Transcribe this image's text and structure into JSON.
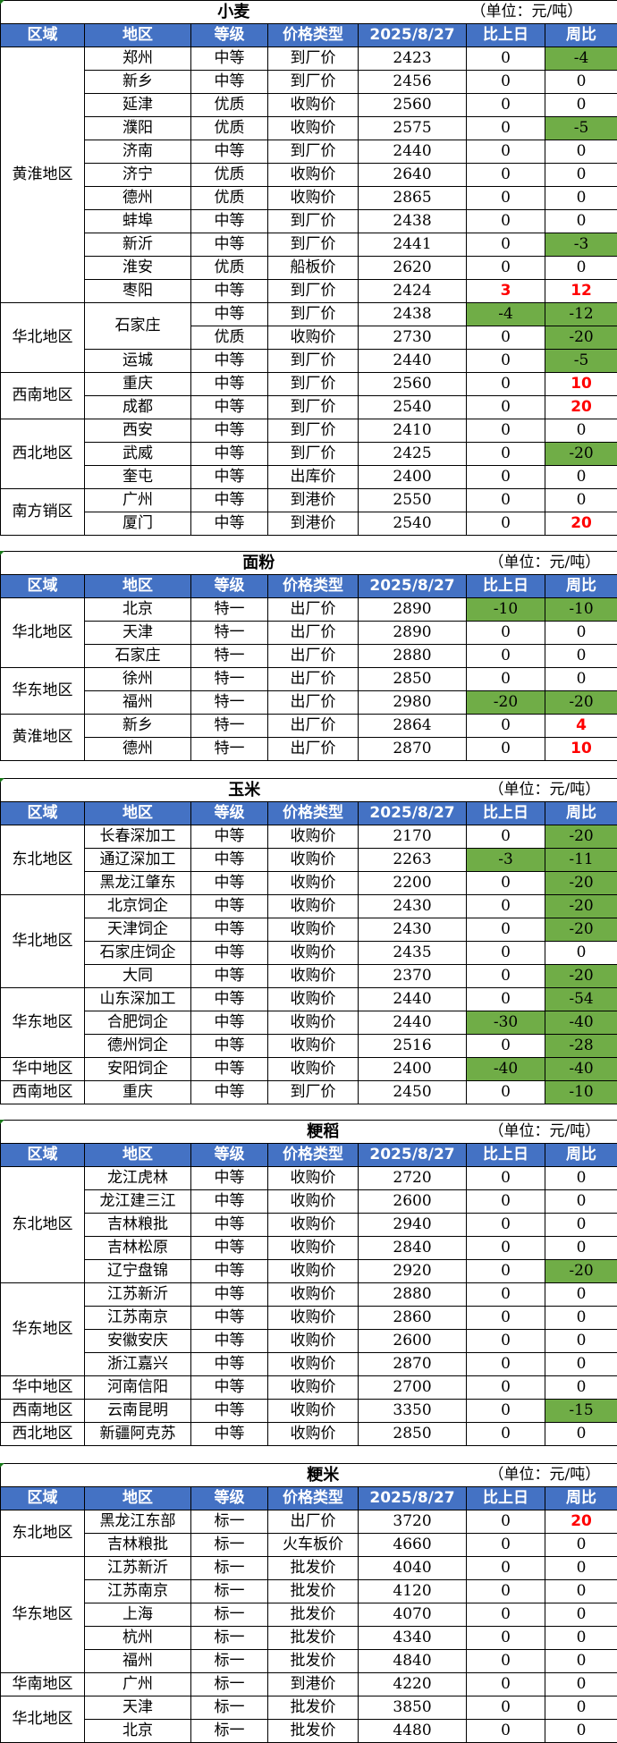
{
  "colors": {
    "header_bg": "#4472C4",
    "decrease_bg": "#70AD47",
    "increase_text": "#FF0000"
  },
  "headers": [
    "区域",
    "地区",
    "等级",
    "价格类型",
    "2025/8/27",
    "比上日",
    "周比"
  ],
  "unit": "（单位：元/吨）",
  "tables": [
    {
      "title": "小麦",
      "groups": [
        {
          "region": "黄淮地区",
          "rows": [
            {
              "area": "郑州",
              "grade": "中等",
              "price_type": "到厂价",
              "price": "2423",
              "dod": "0",
              "wow": "-4"
            },
            {
              "area": "新乡",
              "grade": "中等",
              "price_type": "到厂价",
              "price": "2456",
              "dod": "0",
              "wow": "0"
            },
            {
              "area": "延津",
              "grade": "优质",
              "price_type": "收购价",
              "price": "2560",
              "dod": "0",
              "wow": "0"
            },
            {
              "area": "濮阳",
              "grade": "优质",
              "price_type": "收购价",
              "price": "2575",
              "dod": "0",
              "wow": "-5"
            },
            {
              "area": "济南",
              "grade": "中等",
              "price_type": "到厂价",
              "price": "2440",
              "dod": "0",
              "wow": "0"
            },
            {
              "area": "济宁",
              "grade": "优质",
              "price_type": "收购价",
              "price": "2640",
              "dod": "0",
              "wow": "0"
            },
            {
              "area": "德州",
              "grade": "优质",
              "price_type": "收购价",
              "price": "2865",
              "dod": "0",
              "wow": "0"
            },
            {
              "area": "蚌埠",
              "grade": "中等",
              "price_type": "到厂价",
              "price": "2438",
              "dod": "0",
              "wow": "0"
            },
            {
              "area": "新沂",
              "grade": "中等",
              "price_type": "到厂价",
              "price": "2441",
              "dod": "0",
              "wow": "-3"
            },
            {
              "area": "淮安",
              "grade": "优质",
              "price_type": "船板价",
              "price": "2620",
              "dod": "0",
              "wow": "0"
            },
            {
              "area": "枣阳",
              "grade": "中等",
              "price_type": "到厂价",
              "price": "2424",
              "dod": "3",
              "wow": "12"
            }
          ]
        },
        {
          "region": "华北地区",
          "rows": [
            {
              "area": "石家庄",
              "area_span": 2,
              "grade": "中等",
              "price_type": "到厂价",
              "price": "2438",
              "dod": "-4",
              "wow": "-12"
            },
            {
              "grade": "优质",
              "price_type": "收购价",
              "price": "2730",
              "dod": "0",
              "wow": "-20"
            },
            {
              "area": "运城",
              "grade": "中等",
              "price_type": "到厂价",
              "price": "2440",
              "dod": "0",
              "wow": "-5"
            }
          ]
        },
        {
          "region": "西南地区",
          "rows": [
            {
              "area": "重庆",
              "grade": "中等",
              "price_type": "到厂价",
              "price": "2560",
              "dod": "0",
              "wow": "10"
            },
            {
              "area": "成都",
              "grade": "中等",
              "price_type": "到厂价",
              "price": "2540",
              "dod": "0",
              "wow": "20"
            }
          ]
        },
        {
          "region": "西北地区",
          "rows": [
            {
              "area": "西安",
              "grade": "中等",
              "price_type": "到厂价",
              "price": "2410",
              "dod": "0",
              "wow": "0"
            },
            {
              "area": "武威",
              "grade": "中等",
              "price_type": "到厂价",
              "price": "2425",
              "dod": "0",
              "wow": "-20"
            },
            {
              "area": "奎屯",
              "grade": "中等",
              "price_type": "出库价",
              "price": "2400",
              "dod": "0",
              "wow": "0"
            }
          ]
        },
        {
          "region": "南方销区",
          "rows": [
            {
              "area": "广州",
              "grade": "中等",
              "price_type": "到港价",
              "price": "2550",
              "dod": "0",
              "wow": "0"
            },
            {
              "area": "厦门",
              "grade": "中等",
              "price_type": "到港价",
              "price": "2540",
              "dod": "0",
              "wow": "20"
            }
          ]
        }
      ]
    },
    {
      "title": "面粉",
      "groups": [
        {
          "region": "华北地区",
          "rows": [
            {
              "area": "北京",
              "grade": "特一",
              "price_type": "出厂价",
              "price": "2890",
              "dod": "-10",
              "wow": "-10"
            },
            {
              "area": "天津",
              "grade": "特一",
              "price_type": "出厂价",
              "price": "2890",
              "dod": "0",
              "wow": "0"
            },
            {
              "area": "石家庄",
              "grade": "特一",
              "price_type": "出厂价",
              "price": "2880",
              "dod": "0",
              "wow": "0"
            }
          ]
        },
        {
          "region": "华东地区",
          "rows": [
            {
              "area": "徐州",
              "grade": "特一",
              "price_type": "出厂价",
              "price": "2850",
              "dod": "0",
              "wow": "0"
            },
            {
              "area": "福州",
              "grade": "特一",
              "price_type": "出厂价",
              "price": "2980",
              "dod": "-20",
              "wow": "-20"
            }
          ]
        },
        {
          "region": "黄淮地区",
          "rows": [
            {
              "area": "新乡",
              "grade": "特一",
              "price_type": "出厂价",
              "price": "2864",
              "dod": "0",
              "wow": "4"
            },
            {
              "area": "德州",
              "grade": "特一",
              "price_type": "出厂价",
              "price": "2870",
              "dod": "0",
              "wow": "10"
            }
          ]
        }
      ]
    },
    {
      "title": "玉米",
      "groups": [
        {
          "region": "东北地区",
          "rows": [
            {
              "area": "长春深加工",
              "grade": "中等",
              "price_type": "收购价",
              "price": "2170",
              "dod": "0",
              "wow": "-20"
            },
            {
              "area": "通辽深加工",
              "grade": "中等",
              "price_type": "收购价",
              "price": "2263",
              "dod": "-3",
              "wow": "-11"
            },
            {
              "area": "黑龙江肇东",
              "grade": "中等",
              "price_type": "收购价",
              "price": "2200",
              "dod": "0",
              "wow": "-20"
            }
          ]
        },
        {
          "region": "华北地区",
          "rows": [
            {
              "area": "北京饲企",
              "grade": "中等",
              "price_type": "收购价",
              "price": "2430",
              "dod": "0",
              "wow": "-20"
            },
            {
              "area": "天津饲企",
              "grade": "中等",
              "price_type": "收购价",
              "price": "2430",
              "dod": "0",
              "wow": "-20"
            },
            {
              "area": "石家庄饲企",
              "grade": "中等",
              "price_type": "收购价",
              "price": "2435",
              "dod": "0",
              "wow": "0"
            },
            {
              "area": "大同",
              "grade": "中等",
              "price_type": "收购价",
              "price": "2370",
              "dod": "0",
              "wow": "-20"
            }
          ]
        },
        {
          "region": "华东地区",
          "rows": [
            {
              "area": "山东深加工",
              "grade": "中等",
              "price_type": "收购价",
              "price": "2440",
              "dod": "0",
              "wow": "-54"
            },
            {
              "area": "合肥饲企",
              "grade": "中等",
              "price_type": "收购价",
              "price": "2440",
              "dod": "-30",
              "wow": "-40"
            },
            {
              "area": "德州饲企",
              "grade": "中等",
              "price_type": "收购价",
              "price": "2516",
              "dod": "0",
              "wow": "-28"
            }
          ]
        },
        {
          "region": "华中地区",
          "rows": [
            {
              "area": "安阳饲企",
              "grade": "中等",
              "price_type": "收购价",
              "price": "2400",
              "dod": "-40",
              "wow": "-40"
            }
          ]
        },
        {
          "region": "西南地区",
          "rows": [
            {
              "area": "重庆",
              "grade": "中等",
              "price_type": "到厂价",
              "price": "2450",
              "dod": "0",
              "wow": "-10"
            }
          ]
        }
      ]
    },
    {
      "title": "粳稻",
      "groups": [
        {
          "region": "东北地区",
          "rows": [
            {
              "area": "龙江虎林",
              "grade": "中等",
              "price_type": "收购价",
              "price": "2720",
              "dod": "0",
              "wow": "0"
            },
            {
              "area": "龙江建三江",
              "grade": "中等",
              "price_type": "收购价",
              "price": "2600",
              "dod": "0",
              "wow": "0"
            },
            {
              "area": "吉林粮批",
              "grade": "中等",
              "price_type": "收购价",
              "price": "2940",
              "dod": "0",
              "wow": "0"
            },
            {
              "area": "吉林松原",
              "grade": "中等",
              "price_type": "收购价",
              "price": "2840",
              "dod": "0",
              "wow": "0"
            },
            {
              "area": "辽宁盘锦",
              "grade": "中等",
              "price_type": "收购价",
              "price": "2920",
              "dod": "0",
              "wow": "-20"
            }
          ]
        },
        {
          "region": "华东地区",
          "rows": [
            {
              "area": "江苏新沂",
              "grade": "中等",
              "price_type": "收购价",
              "price": "2880",
              "dod": "0",
              "wow": "0"
            },
            {
              "area": "江苏南京",
              "grade": "中等",
              "price_type": "收购价",
              "price": "2860",
              "dod": "0",
              "wow": "0"
            },
            {
              "area": "安徽安庆",
              "grade": "中等",
              "price_type": "收购价",
              "price": "2600",
              "dod": "0",
              "wow": "0"
            },
            {
              "area": "浙江嘉兴",
              "grade": "中等",
              "price_type": "收购价",
              "price": "2870",
              "dod": "0",
              "wow": "0"
            }
          ]
        },
        {
          "region": "华中地区",
          "rows": [
            {
              "area": "河南信阳",
              "grade": "中等",
              "price_type": "收购价",
              "price": "2700",
              "dod": "0",
              "wow": "0"
            }
          ]
        },
        {
          "region": "西南地区",
          "rows": [
            {
              "area": "云南昆明",
              "grade": "中等",
              "price_type": "收购价",
              "price": "3350",
              "dod": "0",
              "wow": "-15"
            }
          ]
        },
        {
          "region": "西北地区",
          "rows": [
            {
              "area": "新疆阿克苏",
              "grade": "中等",
              "price_type": "收购价",
              "price": "2850",
              "dod": "0",
              "wow": "0"
            }
          ]
        }
      ]
    },
    {
      "title": "粳米",
      "groups": [
        {
          "region": "东北地区",
          "rows": [
            {
              "area": "黑龙江东部",
              "grade": "标一",
              "price_type": "出厂价",
              "price": "3720",
              "dod": "0",
              "wow": "20"
            },
            {
              "area": "吉林粮批",
              "grade": "标一",
              "price_type": "火车板价",
              "price": "4660",
              "dod": "0",
              "wow": "0"
            }
          ]
        },
        {
          "region": "华东地区",
          "rows": [
            {
              "area": "江苏新沂",
              "grade": "标一",
              "price_type": "批发价",
              "price": "4040",
              "dod": "0",
              "wow": "0"
            },
            {
              "area": "江苏南京",
              "grade": "标一",
              "price_type": "批发价",
              "price": "4120",
              "dod": "0",
              "wow": "0"
            },
            {
              "area": "上海",
              "grade": "标一",
              "price_type": "批发价",
              "price": "4070",
              "dod": "0",
              "wow": "0"
            },
            {
              "area": "杭州",
              "grade": "标一",
              "price_type": "批发价",
              "price": "4340",
              "dod": "0",
              "wow": "0"
            },
            {
              "area": "福州",
              "grade": "标一",
              "price_type": "批发价",
              "price": "4840",
              "dod": "0",
              "wow": "0"
            }
          ]
        },
        {
          "region": "华南地区",
          "rows": [
            {
              "area": "广州",
              "grade": "标一",
              "price_type": "到港价",
              "price": "4220",
              "dod": "0",
              "wow": "0"
            }
          ]
        },
        {
          "region": "华北地区",
          "rows": [
            {
              "area": "天津",
              "grade": "标一",
              "price_type": "批发价",
              "price": "3850",
              "dod": "0",
              "wow": "0"
            },
            {
              "area": "北京",
              "grade": "标一",
              "price_type": "批发价",
              "price": "4480",
              "dod": "0",
              "wow": "0"
            }
          ]
        }
      ]
    }
  ]
}
